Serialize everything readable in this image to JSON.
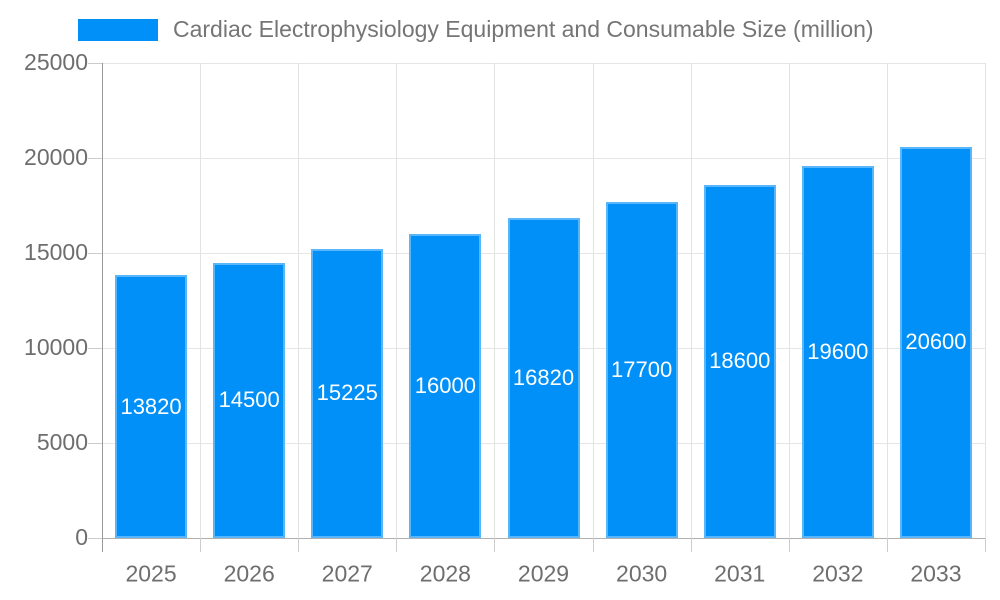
{
  "legend": {
    "label": "Cardiac Electrophysiology Equipment and Consumable Size (million)"
  },
  "colors": {
    "bar": "#0090f8",
    "legend_text": "#757575",
    "tick_text": "#6e6e6e",
    "grid": "#e6e6e6",
    "axis_line": "#999999",
    "baseline": "#b0b0b0",
    "bar_label": "#ffffff"
  },
  "chart_data": {
    "type": "bar",
    "title": "Cardiac Electrophysiology Equipment and Consumable Size (million)",
    "series_name": "Cardiac Electrophysiology Equipment and Consumable Size (million)",
    "categories": [
      "2025",
      "2026",
      "2027",
      "2028",
      "2029",
      "2030",
      "2031",
      "2032",
      "2033"
    ],
    "values": [
      13820,
      14500,
      15225,
      16000,
      16820,
      17700,
      18600,
      19600,
      20600
    ],
    "value_labels": [
      "13820",
      "14500",
      "15225",
      "16000",
      "16820",
      "17700",
      "18600",
      "19600",
      "20600"
    ],
    "xlabel": "",
    "ylabel": "",
    "ylim": [
      0,
      25000
    ],
    "yticks": [
      0,
      5000,
      10000,
      15000,
      20000,
      25000
    ],
    "ytick_labels": [
      "0",
      "5000",
      "10000",
      "15000",
      "20000",
      "25000"
    ],
    "grid": true,
    "legend_position": "top-left",
    "bar_label_position": "inside-middle"
  }
}
